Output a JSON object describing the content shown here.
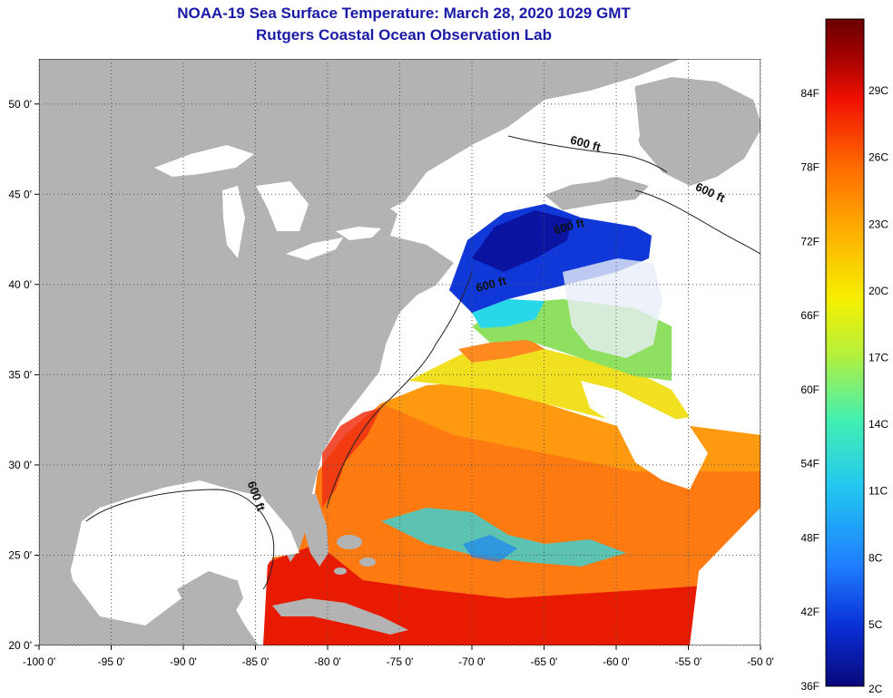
{
  "title_line1": "NOAA-19 Sea Surface Temperature:  March 28, 2020 1029 GMT",
  "title_line2": "Rutgers Coastal Ocean Observation Lab",
  "map": {
    "lon_range": [
      -100,
      -50
    ],
    "lat_range": [
      20,
      52.5
    ],
    "x_ticks": [
      {
        "value": -100,
        "label": "-100 0'"
      },
      {
        "value": -95,
        "label": "-95 0'"
      },
      {
        "value": -90,
        "label": "-90 0'"
      },
      {
        "value": -85,
        "label": "-85 0'"
      },
      {
        "value": -80,
        "label": "-80 0'"
      },
      {
        "value": -75,
        "label": "-75 0'"
      },
      {
        "value": -70,
        "label": "-70 0'"
      },
      {
        "value": -65,
        "label": "-65 0'"
      },
      {
        "value": -60,
        "label": "-60 0'"
      },
      {
        "value": -55,
        "label": "-55 0'"
      },
      {
        "value": -50,
        "label": "-50 0'"
      }
    ],
    "y_ticks": [
      {
        "value": 50,
        "label": "50 0'"
      },
      {
        "value": 45,
        "label": "45 0'"
      },
      {
        "value": 40,
        "label": "40 0'"
      },
      {
        "value": 35,
        "label": "35 0'"
      },
      {
        "value": 30,
        "label": "30 0'"
      },
      {
        "value": 25,
        "label": "25 0'"
      },
      {
        "value": 20,
        "label": "20 0'"
      }
    ],
    "contour_labels": [
      {
        "text": "600 ft",
        "lon": -62.2,
        "lat": 47.6,
        "rotate": 15
      },
      {
        "text": "600 ft",
        "lon": -53.6,
        "lat": 44.9,
        "rotate": 25
      },
      {
        "text": "600 ft",
        "lon": -63.2,
        "lat": 43.0,
        "rotate": -15
      },
      {
        "text": "600 ft",
        "lon": -68.6,
        "lat": 39.8,
        "rotate": -15
      },
      {
        "text": "600 ft",
        "lon": -85.2,
        "lat": 28.2,
        "rotate": 70
      }
    ],
    "colors": {
      "land": "#b3b3b3",
      "no_data": "#ffffff",
      "grid": "#555555"
    }
  },
  "colorbar": {
    "colors": [
      "#08087a",
      "#0a2fd6",
      "#1f7dff",
      "#22c8f0",
      "#43f0b0",
      "#b8f03a",
      "#f5f000",
      "#ffb000",
      "#ff6a00",
      "#f01000",
      "#9c0000",
      "#6a0000"
    ],
    "fahrenheit": [
      {
        "value": 84,
        "label": "84F"
      },
      {
        "value": 78,
        "label": "78F"
      },
      {
        "value": 72,
        "label": "72F"
      },
      {
        "value": 66,
        "label": "66F"
      },
      {
        "value": 60,
        "label": "60F"
      },
      {
        "value": 54,
        "label": "54F"
      },
      {
        "value": 48,
        "label": "48F"
      },
      {
        "value": 42,
        "label": "42F"
      },
      {
        "value": 36,
        "label": "36F"
      }
    ],
    "celsius": [
      {
        "value": 29,
        "label": "29C"
      },
      {
        "value": 26,
        "label": "26C"
      },
      {
        "value": 23,
        "label": "23C"
      },
      {
        "value": 20,
        "label": "20C"
      },
      {
        "value": 17,
        "label": "17C"
      },
      {
        "value": 14,
        "label": "14C"
      },
      {
        "value": 11,
        "label": "11C"
      },
      {
        "value": 8,
        "label": "8C"
      },
      {
        "value": 5,
        "label": "5C"
      },
      {
        "value": 2,
        "label": "2C"
      }
    ]
  }
}
